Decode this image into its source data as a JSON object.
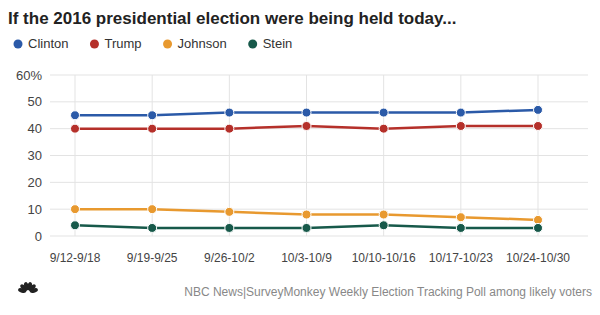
{
  "chart_data": {
    "type": "line",
    "title": "If the 2016 presidential election were being held today...",
    "source": "NBC News|SurveyMonkey Weekly Election Tracking Poll among likely voters",
    "categories": [
      "9/12-9/18",
      "9/19-9/25",
      "9/26-10/2",
      "10/3-10/9",
      "10/10-10/16",
      "10/17-10/23",
      "10/24-10/30"
    ],
    "series": [
      {
        "name": "Clinton",
        "color": "#2b5aa8",
        "values": [
          45,
          45,
          46,
          46,
          46,
          46,
          47
        ]
      },
      {
        "name": "Trump",
        "color": "#b5302a",
        "values": [
          40,
          40,
          40,
          41,
          40,
          41,
          41
        ]
      },
      {
        "name": "Johnson",
        "color": "#e8992f",
        "values": [
          10,
          10,
          9,
          8,
          8,
          7,
          6
        ]
      },
      {
        "name": "Stein",
        "color": "#17594a",
        "values": [
          4,
          3,
          3,
          3,
          4,
          3,
          3
        ]
      }
    ],
    "ylim": [
      0,
      60
    ],
    "yticks": [
      0,
      10,
      20,
      30,
      40,
      50,
      {
        "value": 60,
        "label": "60%"
      }
    ],
    "grid": true,
    "legend": "top-left",
    "marker": "circle"
  }
}
